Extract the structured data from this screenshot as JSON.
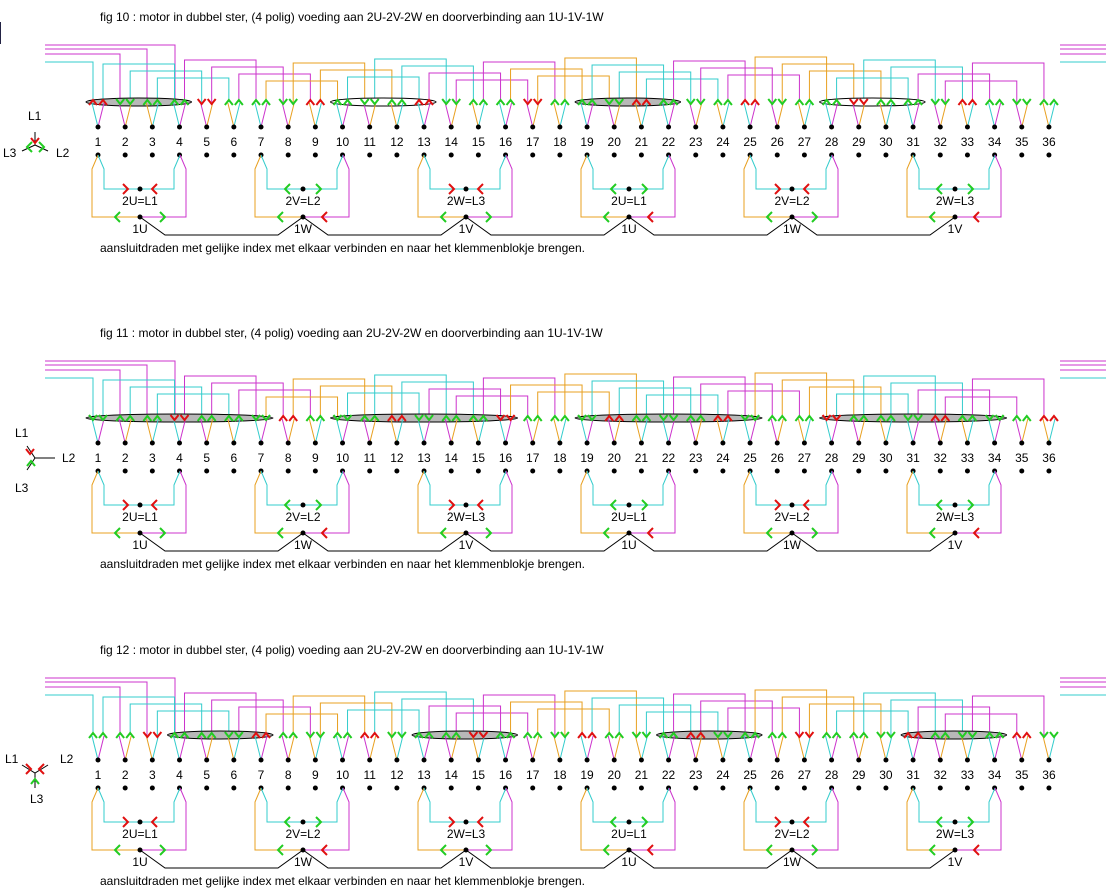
{
  "figures": [
    {
      "title": "fig 10 : motor in dubbel ster,     (4 polig)     voeding aan 2U-2V-2W   en doorverbinding aan 1U-1V-1W",
      "legend": {
        "l1": "L1",
        "l2": "L2",
        "l3": "L3",
        "style": "y-down"
      },
      "groups": [
        "2U=L1",
        "2V=L2",
        "2W=L3",
        "2U=L1",
        "2V=L2",
        "2W=L3"
      ],
      "bottom": [
        "1U",
        "1W",
        "1V",
        "1U",
        "1W",
        "1V"
      ],
      "caption": "aansluitdraden met gelijke index met elkaar verbinden en naar het klemmenblokje brengen.",
      "highlights": [
        [
          1,
          4
        ],
        [
          10,
          13
        ],
        [
          19,
          22
        ],
        [
          28,
          31
        ]
      ]
    },
    {
      "title": "fig 11 : motor in dubbel ster,     (4 polig)     voeding aan 2U-2V-2W   en doorverbinding aan 1U-1V-1W",
      "legend": {
        "l1": "L1",
        "l2": "L2",
        "l3": "L3",
        "style": "y-right"
      },
      "groups": [
        "2U=L1",
        "2V=L2",
        "2W=L3",
        "2U=L1",
        "2V=L2",
        "2W=L3"
      ],
      "bottom": [
        "1U",
        "1W",
        "1V",
        "1U",
        "1W",
        "1V"
      ],
      "caption": "aansluitdraden met gelijke index met elkaar verbinden en naar het klemmenblokje brengen.",
      "highlights": [
        [
          1,
          7
        ],
        [
          10,
          16
        ],
        [
          19,
          25
        ],
        [
          28,
          34
        ]
      ]
    },
    {
      "title": "fig 12 : motor in dubbel ster,     (4 polig)     voeding aan 2U-2V-2W   en doorverbinding aan 1U-1V-1W",
      "legend": {
        "l1": "L1",
        "l2": "L2",
        "l3": "L3",
        "style": "y-up"
      },
      "groups": [
        "2U=L1",
        "2V=L2",
        "2W=L3",
        "2U=L1",
        "2V=L2",
        "2W=L3"
      ],
      "bottom": [
        "1U",
        "1W",
        "1V",
        "1U",
        "1W",
        "1V"
      ],
      "caption": "aansluitdraden met gelijke index met elkaar verbinden en naar het klemmenblokje brengen.",
      "highlights": [
        [
          4,
          7
        ],
        [
          13,
          16
        ],
        [
          22,
          25
        ],
        [
          31,
          34
        ]
      ]
    }
  ],
  "slots": [
    "1",
    "2",
    "3",
    "4",
    "5",
    "6",
    "7",
    "8",
    "9",
    "10",
    "11",
    "12",
    "13",
    "14",
    "15",
    "16",
    "17",
    "18",
    "19",
    "20",
    "21",
    "22",
    "23",
    "24",
    "25",
    "26",
    "27",
    "28",
    "29",
    "30",
    "31",
    "32",
    "33",
    "34",
    "35",
    "36"
  ],
  "colors": {
    "cyan": "#33cccc",
    "orange": "#e8a020",
    "magenta": "#cc33cc",
    "red": "#e01010",
    "green": "#22cc22",
    "ellipse": "#b8b8b8"
  }
}
